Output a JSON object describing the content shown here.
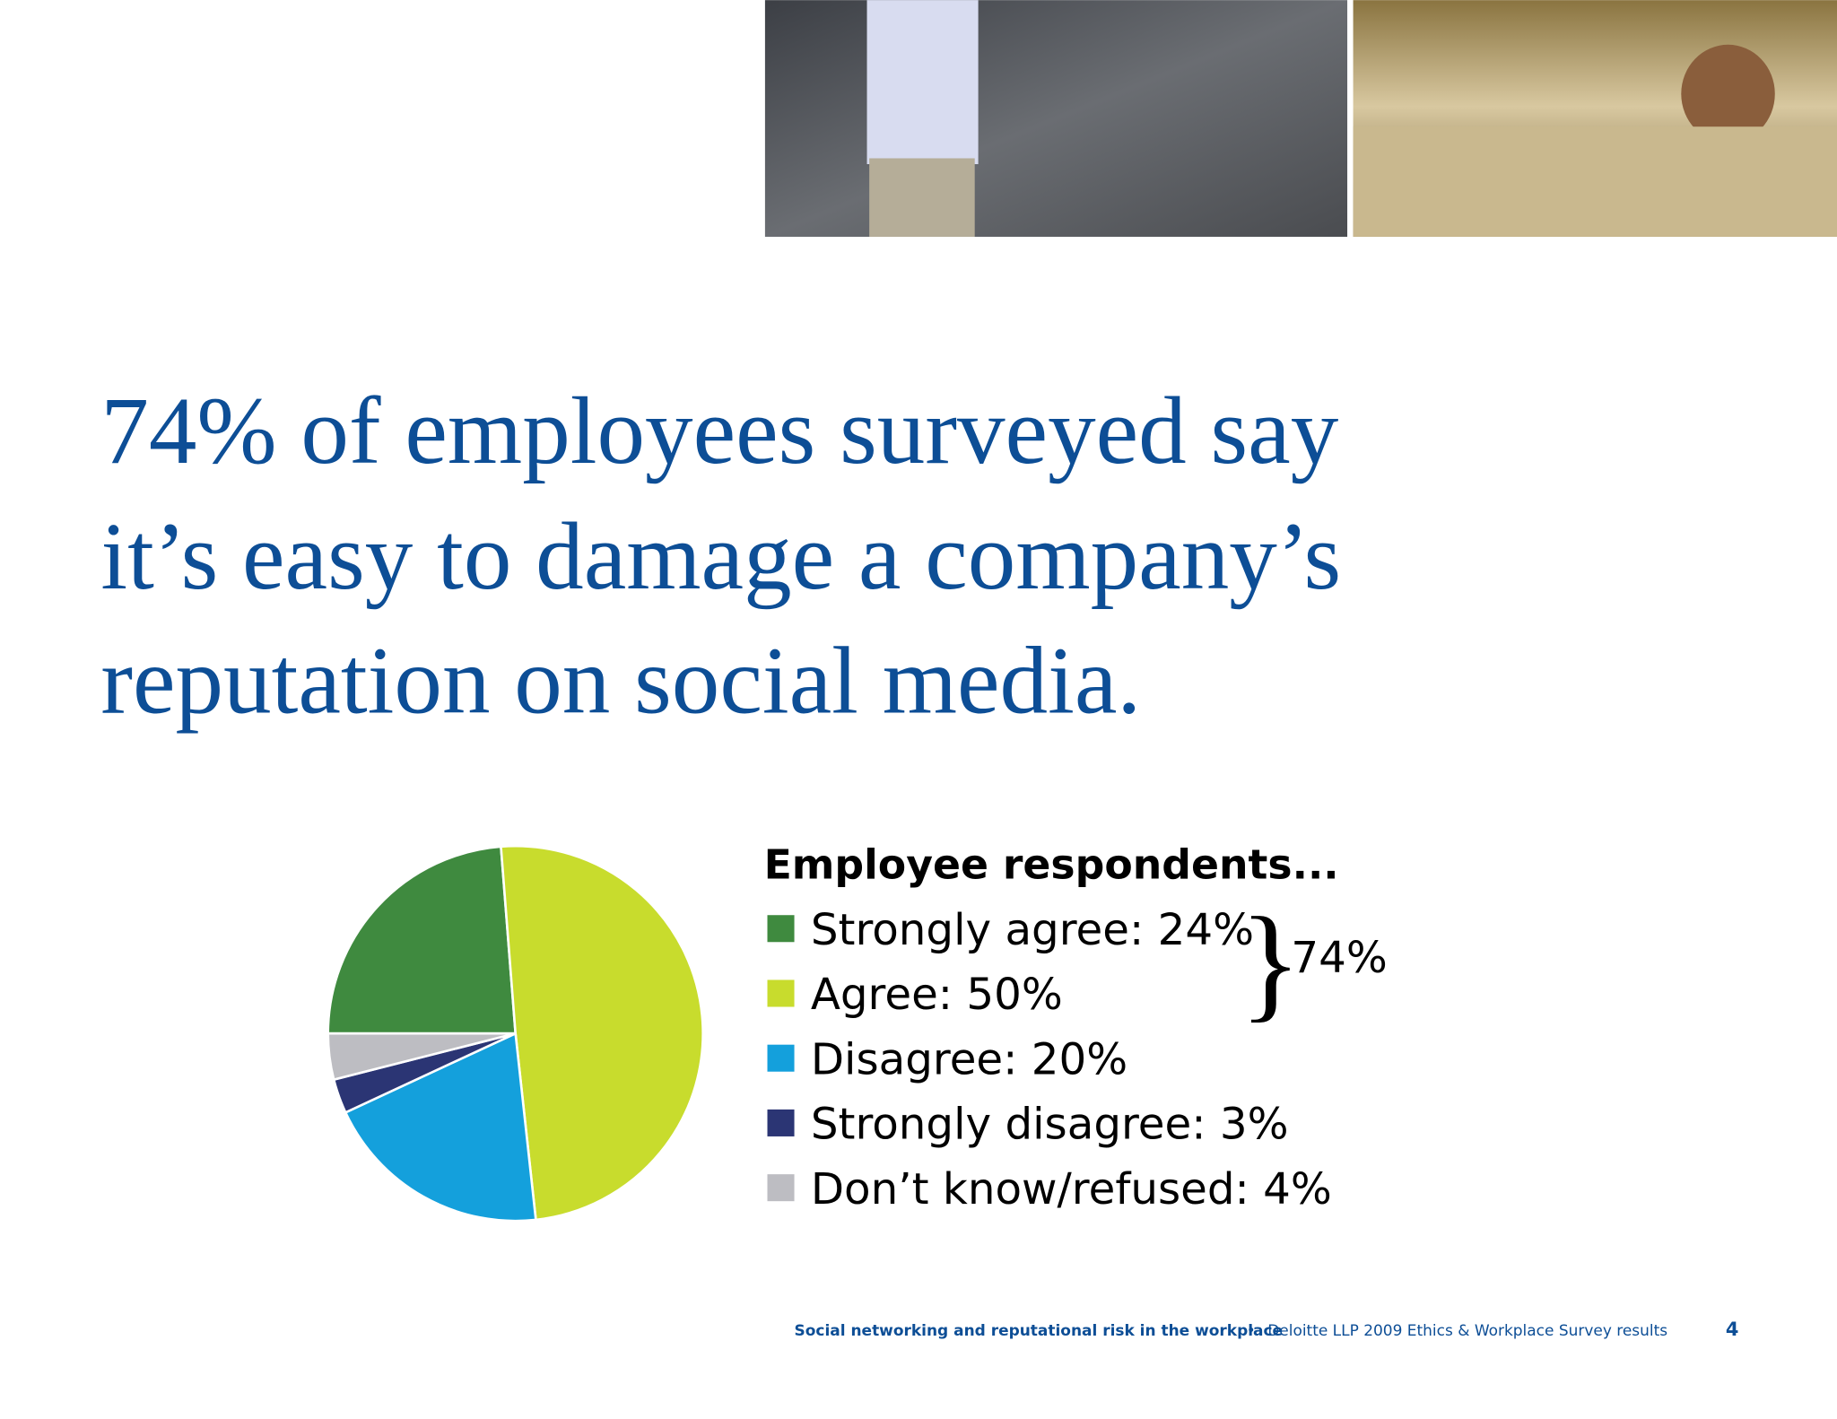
{
  "headline": {
    "lines": [
      "74% of employees surveyed say",
      "it’s easy to damage a company’s",
      "reputation on social media."
    ]
  },
  "chart_data": {
    "type": "pie",
    "legend_title": "Employee respondents...",
    "categories": [
      "Strongly agree: 24%",
      "Agree: 50%",
      "Disagree: 20%",
      "Strongly disagree: 3%",
      "Don’t know/refused: 4%"
    ],
    "values": [
      24,
      50,
      20,
      3,
      4
    ],
    "colors": [
      "#3f8a3f",
      "#c8dc2d",
      "#14a0dc",
      "#2b3574",
      "#bdbdc2"
    ],
    "annotation": "74%"
  },
  "footer": {
    "title": "Social networking and reputational risk in the workplace",
    "separator": "•",
    "source": "Deloitte LLP 2009 Ethics & Workplace Survey results",
    "page": "4"
  }
}
